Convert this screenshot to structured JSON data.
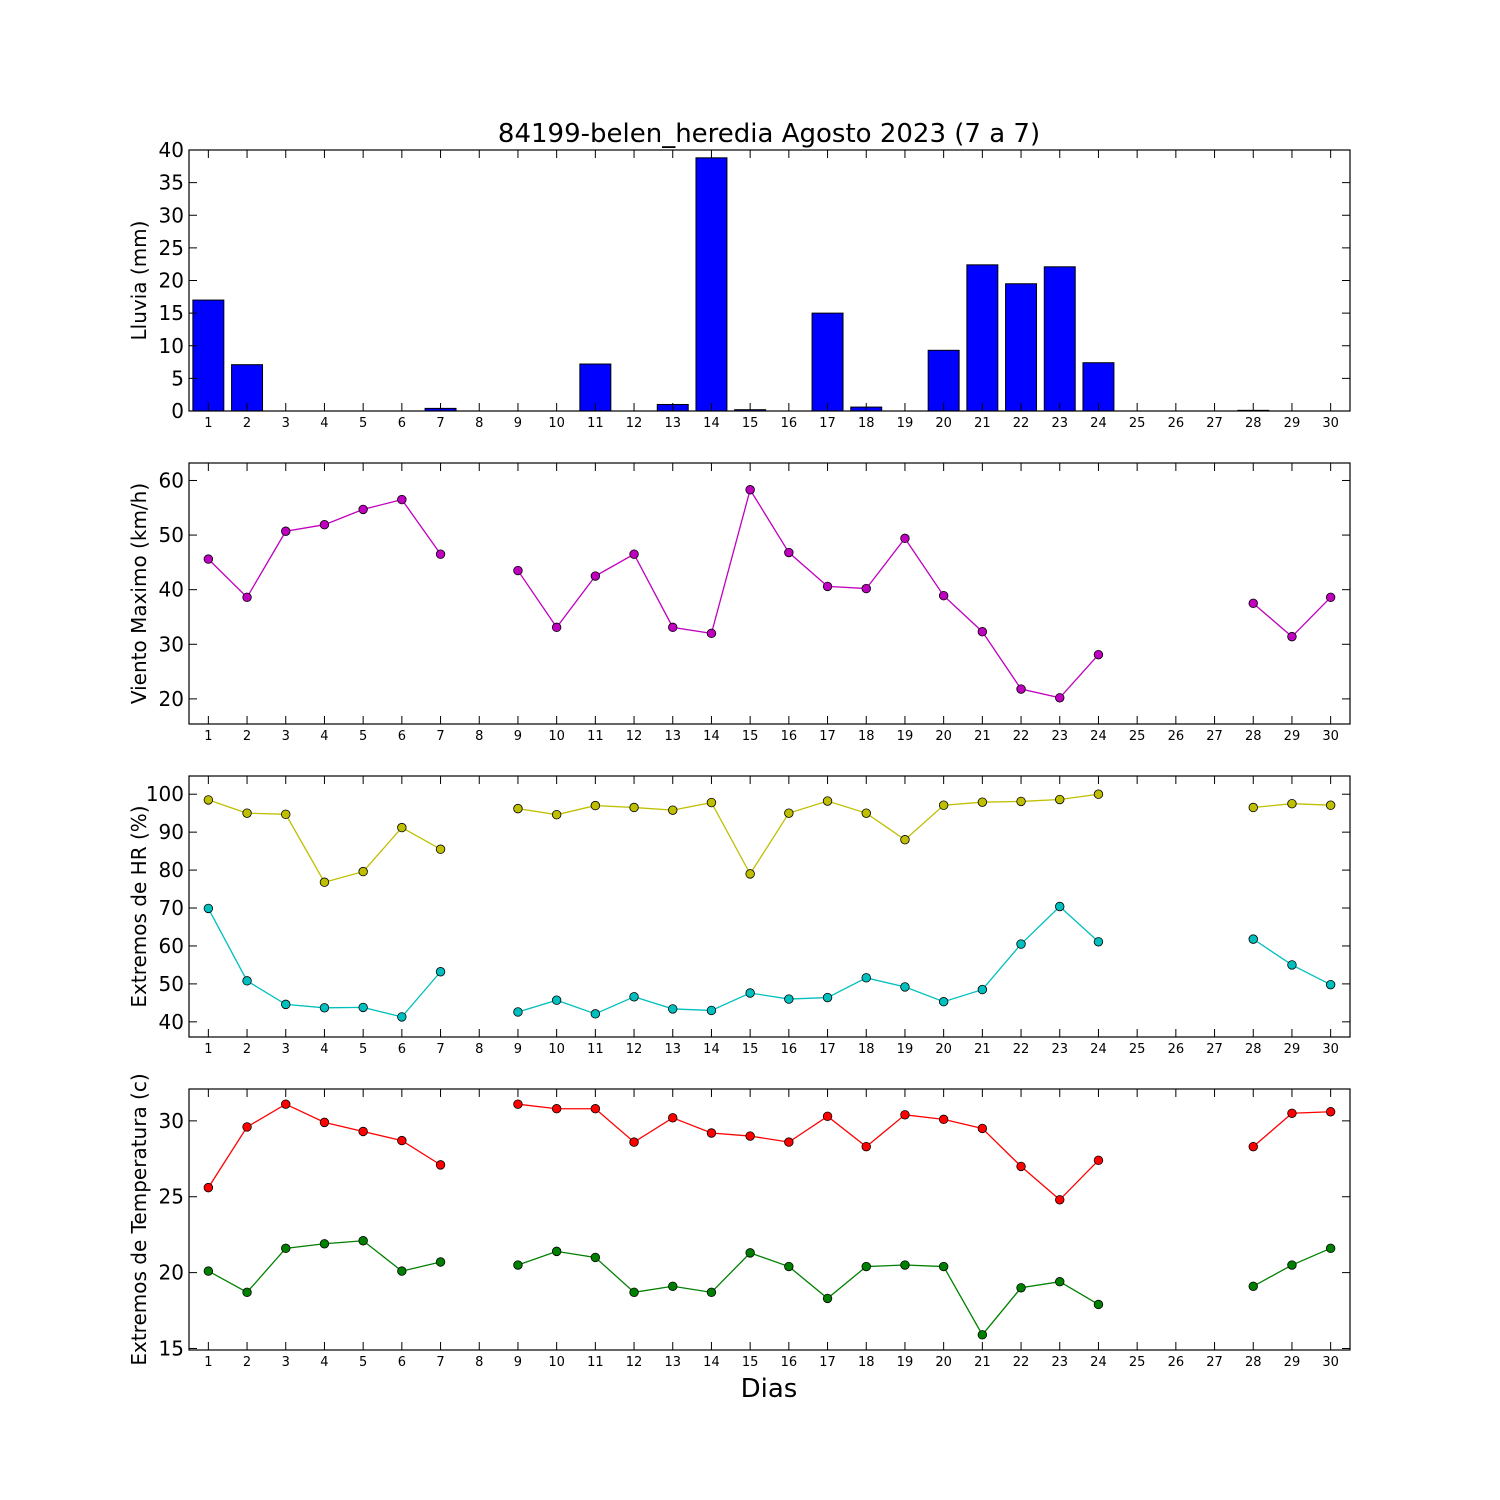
{
  "title": "84199-belen_heredia Agosto 2023  (7 a 7)",
  "xlabel": "Dias",
  "chart_data": [
    {
      "type": "bar",
      "ylabel": "Lluvia (mm)",
      "ylim": [
        0,
        40
      ],
      "yticks": [
        0,
        5,
        10,
        15,
        20,
        25,
        30,
        35,
        40
      ],
      "xlim": [
        0.5,
        30.5
      ],
      "x": [
        1,
        2,
        3,
        4,
        5,
        6,
        7,
        8,
        9,
        10,
        11,
        12,
        13,
        14,
        15,
        16,
        17,
        18,
        19,
        20,
        21,
        22,
        23,
        24,
        25,
        26,
        27,
        28,
        29,
        30
      ],
      "xticklabels": [
        "1",
        "2",
        "3",
        "4",
        "5",
        "6",
        "7",
        "8",
        "9",
        "10",
        "11",
        "12",
        "13",
        "14",
        "15",
        "16",
        "17",
        "18",
        "19",
        "20",
        "21",
        "22",
        "23",
        "24",
        "25",
        "26",
        "27",
        "28",
        "29",
        "30"
      ],
      "series": [
        {
          "color": "#0000ff",
          "values": [
            17.0,
            7.1,
            0,
            0,
            0,
            0,
            0.4,
            0,
            0,
            0,
            7.2,
            0,
            1.0,
            38.8,
            0.2,
            0,
            15.0,
            0.6,
            0,
            9.3,
            22.4,
            19.5,
            22.1,
            7.4,
            0,
            0,
            0,
            0.1,
            0,
            0
          ]
        }
      ]
    },
    {
      "type": "line",
      "ylabel": "Viento Maximo (km/h)",
      "ylim": [
        15.4,
        63.2
      ],
      "yticks": [
        20,
        30,
        40,
        50,
        60
      ],
      "xlim": [
        0.5,
        30.5
      ],
      "x": [
        1,
        2,
        3,
        4,
        5,
        6,
        7,
        8,
        9,
        10,
        11,
        12,
        13,
        14,
        15,
        16,
        17,
        18,
        19,
        20,
        21,
        22,
        23,
        24,
        25,
        26,
        27,
        28,
        29,
        30
      ],
      "xticklabels": [
        "1",
        "2",
        "3",
        "4",
        "5",
        "6",
        "7",
        "8",
        "9",
        "10",
        "11",
        "12",
        "13",
        "14",
        "15",
        "16",
        "17",
        "18",
        "19",
        "20",
        "21",
        "22",
        "23",
        "24",
        "25",
        "26",
        "27",
        "28",
        "29",
        "30"
      ],
      "series": [
        {
          "color": "#bf00bf",
          "values": [
            45.6,
            38.6,
            50.7,
            51.9,
            54.7,
            56.5,
            46.5,
            null,
            43.5,
            33.1,
            42.5,
            46.5,
            33.1,
            32.0,
            58.3,
            46.8,
            40.6,
            40.2,
            49.4,
            38.9,
            32.3,
            21.8,
            20.2,
            28.1,
            null,
            null,
            null,
            37.5,
            31.4,
            38.6
          ]
        }
      ]
    },
    {
      "type": "line",
      "ylabel": "Extremos de HR (%)",
      "ylim": [
        36.0,
        104.8
      ],
      "yticks": [
        40,
        50,
        60,
        70,
        80,
        90,
        100
      ],
      "xlim": [
        0.5,
        30.5
      ],
      "x": [
        1,
        2,
        3,
        4,
        5,
        6,
        7,
        8,
        9,
        10,
        11,
        12,
        13,
        14,
        15,
        16,
        17,
        18,
        19,
        20,
        21,
        22,
        23,
        24,
        25,
        26,
        27,
        28,
        29,
        30
      ],
      "xticklabels": [
        "1",
        "2",
        "3",
        "4",
        "5",
        "6",
        "7",
        "8",
        "9",
        "10",
        "11",
        "12",
        "13",
        "14",
        "15",
        "16",
        "17",
        "18",
        "19",
        "20",
        "21",
        "22",
        "23",
        "24",
        "25",
        "26",
        "27",
        "28",
        "29",
        "30"
      ],
      "series": [
        {
          "color": "#bfbf00",
          "values": [
            98.5,
            95.0,
            94.7,
            76.8,
            79.6,
            91.2,
            85.5,
            null,
            96.2,
            94.6,
            97.0,
            96.5,
            95.8,
            97.8,
            79.0,
            95.0,
            98.2,
            95.0,
            88.0,
            97.1,
            97.9,
            98.1,
            98.6,
            100.0,
            null,
            null,
            null,
            96.5,
            97.5,
            97.1
          ]
        },
        {
          "color": "#00bfbf",
          "values": [
            69.9,
            50.8,
            44.6,
            43.7,
            43.8,
            41.3,
            53.2,
            null,
            42.6,
            45.7,
            42.1,
            46.6,
            43.4,
            43.0,
            47.6,
            46.0,
            46.4,
            51.6,
            49.2,
            45.3,
            48.5,
            60.5,
            70.4,
            61.1,
            null,
            null,
            null,
            61.8,
            55.0,
            49.8
          ]
        }
      ]
    },
    {
      "type": "line",
      "ylabel": "Extremos de Temperatura (c)",
      "ylim": [
        14.9,
        32.1
      ],
      "yticks": [
        15,
        20,
        25,
        30
      ],
      "xlim": [
        0.5,
        30.5
      ],
      "x": [
        1,
        2,
        3,
        4,
        5,
        6,
        7,
        8,
        9,
        10,
        11,
        12,
        13,
        14,
        15,
        16,
        17,
        18,
        19,
        20,
        21,
        22,
        23,
        24,
        25,
        26,
        27,
        28,
        29,
        30
      ],
      "xticklabels": [
        "1",
        "2",
        "3",
        "4",
        "5",
        "6",
        "7",
        "8",
        "9",
        "10",
        "11",
        "12",
        "13",
        "14",
        "15",
        "16",
        "17",
        "18",
        "19",
        "20",
        "21",
        "22",
        "23",
        "24",
        "25",
        "26",
        "27",
        "28",
        "29",
        "30"
      ],
      "series": [
        {
          "color": "#ff0000",
          "values": [
            25.6,
            29.6,
            31.1,
            29.9,
            29.3,
            28.7,
            27.1,
            null,
            31.1,
            30.8,
            30.8,
            28.6,
            30.2,
            29.2,
            29.0,
            28.6,
            30.3,
            28.3,
            30.4,
            30.1,
            29.5,
            27.0,
            24.8,
            27.4,
            null,
            null,
            null,
            28.3,
            30.5,
            30.6
          ]
        },
        {
          "color": "#008000",
          "values": [
            20.1,
            18.7,
            21.6,
            21.9,
            22.1,
            20.1,
            20.7,
            null,
            20.5,
            21.4,
            21.0,
            18.7,
            19.1,
            18.7,
            21.3,
            20.4,
            18.3,
            20.4,
            20.5,
            20.4,
            15.9,
            19.0,
            19.4,
            17.9,
            null,
            null,
            null,
            19.1,
            20.5,
            21.6
          ]
        }
      ]
    }
  ]
}
